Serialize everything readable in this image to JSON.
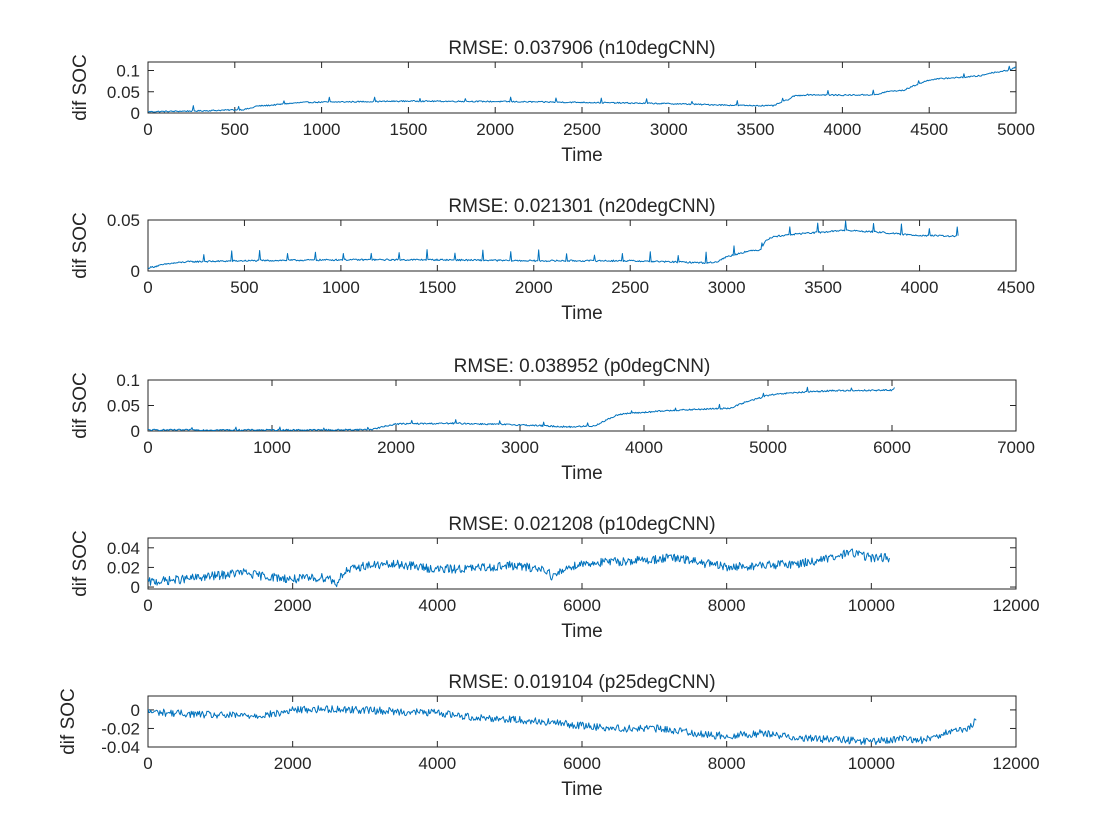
{
  "chart_data": [
    {
      "type": "line",
      "title": "RMSE: 0.037906 (n10degCNN)",
      "xlabel": "Time",
      "ylabel": "dif SOC",
      "xlim": [
        0,
        5000
      ],
      "ylim": [
        0,
        0.12
      ],
      "xticks": [
        0,
        500,
        1000,
        1500,
        2000,
        2500,
        3000,
        3500,
        4000,
        4500,
        5000
      ],
      "xtick_labels": [
        "0",
        "500",
        "1000",
        "1500",
        "2000",
        "2500",
        "3000",
        "3500",
        "4000",
        "4500",
        "5000"
      ],
      "yticks": [
        0,
        0.05,
        0.1
      ],
      "ytick_labels": [
        "0",
        "0.05",
        "0.1"
      ],
      "grid": false,
      "color": "#0072BD",
      "noise": 0.0015,
      "spike_every": 47,
      "spike_height": 0.012,
      "series": [
        {
          "x": [
            0,
            300,
            550,
            600,
            620,
            700,
            800,
            900,
            1500,
            2000,
            2500,
            3000,
            3400,
            3600,
            3650,
            3700,
            3720,
            3800,
            4000,
            4200,
            4250,
            4300,
            4350,
            4400,
            4500,
            4600,
            4650,
            4700,
            4750,
            4800,
            4850,
            4950,
            5000
          ],
          "y": [
            0.003,
            0.005,
            0.008,
            0.012,
            0.016,
            0.018,
            0.022,
            0.025,
            0.028,
            0.027,
            0.025,
            0.022,
            0.018,
            0.017,
            0.025,
            0.034,
            0.04,
            0.043,
            0.042,
            0.043,
            0.05,
            0.052,
            0.053,
            0.062,
            0.078,
            0.082,
            0.083,
            0.084,
            0.086,
            0.088,
            0.094,
            0.1,
            0.108
          ]
        }
      ]
    },
    {
      "type": "line",
      "title": "RMSE: 0.021301 (n20degCNN)",
      "xlabel": "Time",
      "ylabel": "dif SOC",
      "xlim": [
        0,
        4500
      ],
      "ylim": [
        0,
        0.05
      ],
      "xticks": [
        0,
        500,
        1000,
        1500,
        2000,
        2500,
        3000,
        3500,
        4000,
        4500
      ],
      "xtick_labels": [
        "0",
        "500",
        "1000",
        "1500",
        "2000",
        "2500",
        "3000",
        "3500",
        "4000",
        "4500"
      ],
      "yticks": [
        0,
        0.05
      ],
      "ytick_labels": [
        "0",
        "0.05"
      ],
      "grid": false,
      "color": "#0072BD",
      "noise": 0.0008,
      "spike_every": 31,
      "spike_height": 0.011,
      "series": [
        {
          "x": [
            0,
            50,
            100,
            200,
            500,
            1000,
            1500,
            2000,
            2500,
            2900,
            2950,
            3000,
            3100,
            3180,
            3200,
            3250,
            3400,
            3500,
            3600,
            3800,
            3900,
            4000,
            4200
          ],
          "y": [
            0.003,
            0.005,
            0.007,
            0.009,
            0.01,
            0.011,
            0.011,
            0.01,
            0.01,
            0.008,
            0.009,
            0.014,
            0.019,
            0.021,
            0.03,
            0.034,
            0.037,
            0.038,
            0.04,
            0.038,
            0.036,
            0.035,
            0.034
          ]
        }
      ]
    },
    {
      "type": "line",
      "title": "RMSE: 0.038952 (p0degCNN)",
      "xlabel": "Time",
      "ylabel": "dif SOC",
      "xlim": [
        0,
        7000
      ],
      "ylim": [
        0,
        0.1
      ],
      "xticks": [
        0,
        1000,
        2000,
        3000,
        4000,
        5000,
        6000,
        7000
      ],
      "xtick_labels": [
        "0",
        "1000",
        "2000",
        "3000",
        "4000",
        "5000",
        "6000",
        "7000"
      ],
      "yticks": [
        0,
        0.05,
        0.1
      ],
      "ytick_labels": [
        "0",
        "0.05",
        "0.1"
      ],
      "grid": false,
      "color": "#0072BD",
      "noise": 0.0015,
      "spike_every": 53,
      "spike_height": 0.008,
      "series": [
        {
          "x": [
            0,
            500,
            1000,
            1500,
            1800,
            2000,
            2500,
            3000,
            3400,
            3600,
            3700,
            3800,
            4200,
            4700,
            4800,
            5000,
            5200,
            5500,
            6000,
            6020
          ],
          "y": [
            0.002,
            0.002,
            0.002,
            0.002,
            0.003,
            0.014,
            0.015,
            0.012,
            0.008,
            0.01,
            0.022,
            0.033,
            0.04,
            0.045,
            0.055,
            0.07,
            0.075,
            0.079,
            0.08,
            0.085
          ]
        }
      ]
    },
    {
      "type": "line",
      "title": "RMSE: 0.021208 (p10degCNN)",
      "xlabel": "Time",
      "ylabel": "dif SOC",
      "xlim": [
        0,
        12000
      ],
      "ylim": [
        -0.002,
        0.05
      ],
      "xticks": [
        0,
        2000,
        4000,
        6000,
        8000,
        10000,
        12000
      ],
      "xtick_labels": [
        "0",
        "2000",
        "4000",
        "6000",
        "8000",
        "10000",
        "12000"
      ],
      "yticks": [
        0,
        0.02,
        0.04
      ],
      "ytick_labels": [
        "0",
        "0.02",
        "0.04"
      ],
      "grid": false,
      "color": "#0072BD",
      "noise": 0.0045,
      "spike_every": 0,
      "spike_height": 0,
      "series": [
        {
          "x": [
            0,
            500,
            1000,
            1300,
            1500,
            2000,
            2500,
            2600,
            2700,
            3000,
            3500,
            4000,
            4500,
            5000,
            5500,
            5600,
            5800,
            6000,
            6500,
            7000,
            7200,
            7500,
            8000,
            8500,
            9000,
            9500,
            9700,
            10000,
            10250
          ],
          "y": [
            0.005,
            0.008,
            0.012,
            0.015,
            0.012,
            0.008,
            0.01,
            0.003,
            0.015,
            0.022,
            0.023,
            0.018,
            0.019,
            0.022,
            0.018,
            0.01,
            0.02,
            0.024,
            0.026,
            0.028,
            0.03,
            0.027,
            0.02,
            0.022,
            0.024,
            0.03,
            0.036,
            0.03,
            0.03
          ]
        }
      ]
    },
    {
      "type": "line",
      "title": "RMSE: 0.019104 (p25degCNN)",
      "xlabel": "Time",
      "ylabel": "dif SOC",
      "xlim": [
        0,
        12000
      ],
      "ylim": [
        -0.04,
        0.015
      ],
      "xticks": [
        0,
        2000,
        4000,
        6000,
        8000,
        10000,
        12000
      ],
      "xtick_labels": [
        "0",
        "2000",
        "4000",
        "6000",
        "8000",
        "10000",
        "12000"
      ],
      "yticks": [
        -0.04,
        -0.02,
        0
      ],
      "ytick_labels": [
        "-0.04",
        "-0.02",
        "0"
      ],
      "grid": false,
      "color": "#0072BD",
      "noise": 0.004,
      "spike_every": 0,
      "spike_height": 0,
      "series": [
        {
          "x": [
            0,
            500,
            1000,
            1500,
            1800,
            2000,
            2500,
            3000,
            3500,
            4000,
            4500,
            5000,
            5500,
            6000,
            6500,
            7000,
            7500,
            7700,
            8000,
            8500,
            9000,
            9500,
            10000,
            10500,
            10700,
            11000,
            11300,
            11450
          ],
          "y": [
            -0.002,
            -0.004,
            -0.006,
            -0.006,
            -0.004,
            0.0,
            0.001,
            0.0,
            -0.002,
            -0.003,
            -0.008,
            -0.01,
            -0.013,
            -0.017,
            -0.02,
            -0.02,
            -0.024,
            -0.027,
            -0.028,
            -0.025,
            -0.03,
            -0.032,
            -0.034,
            -0.031,
            -0.033,
            -0.025,
            -0.022,
            -0.012
          ]
        }
      ]
    }
  ]
}
